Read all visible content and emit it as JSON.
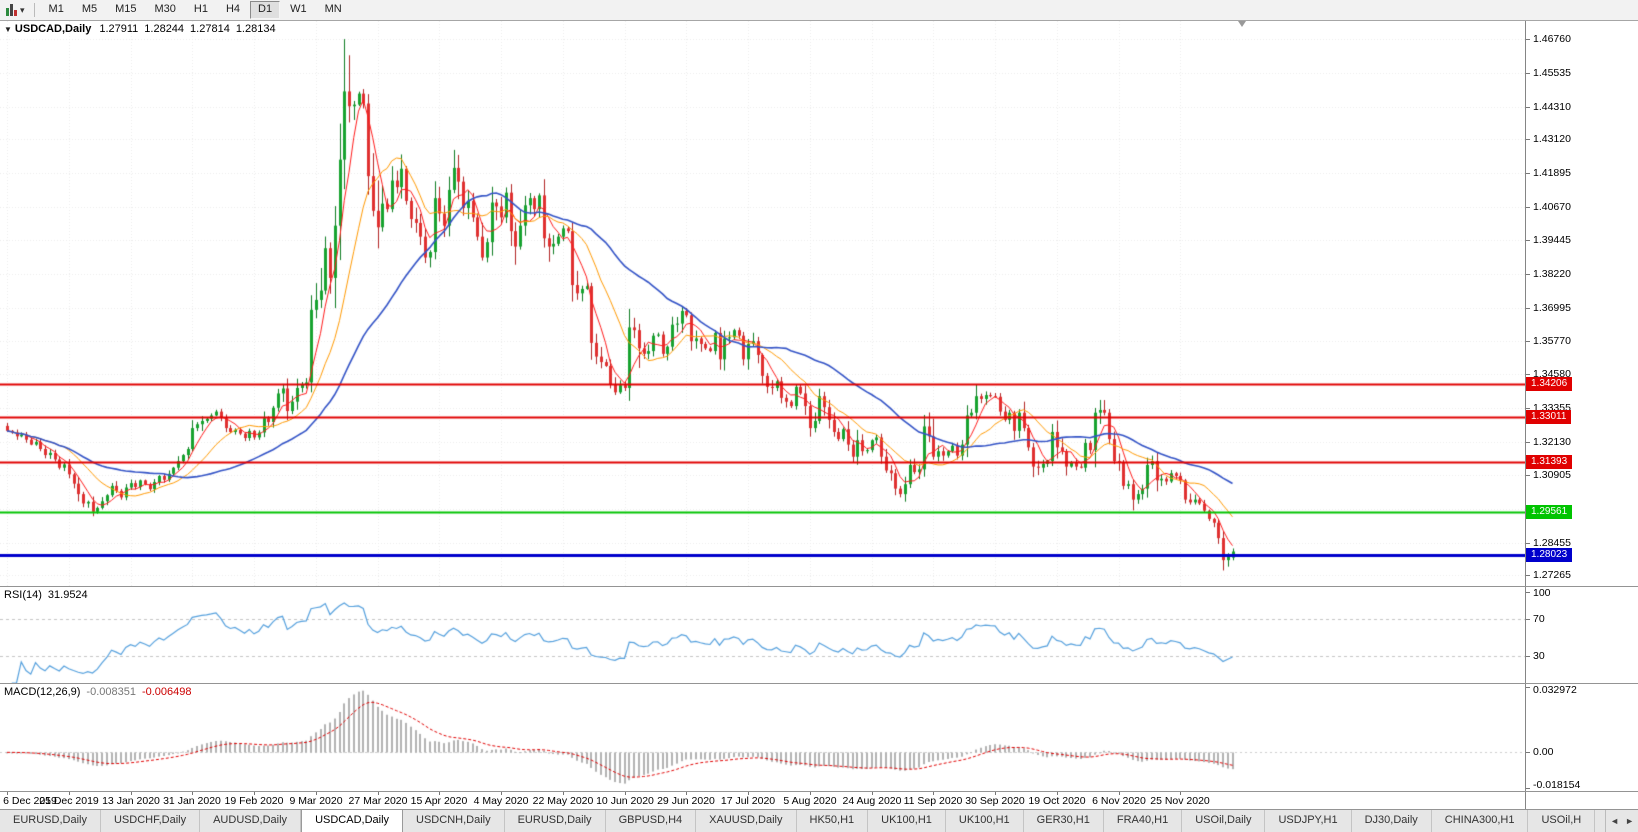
{
  "icons": {
    "caret": "▾",
    "scroll_left": "◄",
    "scroll_right": "►",
    "chart_type": "candlestick-chart"
  },
  "toolbar": {
    "timeframes": [
      "M1",
      "M5",
      "M15",
      "M30",
      "H1",
      "H4",
      "D1",
      "W1",
      "MN"
    ],
    "active_timeframe": "D1"
  },
  "title": {
    "marker": "▼",
    "symbol": "USDCAD,Daily",
    "open": "1.27911",
    "high": "1.28244",
    "low": "1.27814",
    "close": "1.28134"
  },
  "price_axis": {
    "labels": [
      "1.46760",
      "1.45535",
      "1.44310",
      "1.43120",
      "1.41895",
      "1.40670",
      "1.39445",
      "1.38220",
      "1.36995",
      "1.35770",
      "1.34580",
      "1.33355",
      "1.32130",
      "1.30905",
      "1.29680",
      "1.28455",
      "1.27265"
    ]
  },
  "levels": [
    {
      "price": "1.34206",
      "value": 1.34206,
      "color": "#e00000",
      "width": 2
    },
    {
      "price": "1.33011",
      "value": 1.33011,
      "color": "#e00000",
      "width": 2
    },
    {
      "price": "1.31393",
      "value": 1.31393,
      "color": "#e00000",
      "width": 2
    },
    {
      "price": "1.29561",
      "value": 1.29561,
      "color": "#00c400",
      "width": 2
    },
    {
      "price": "1.28023",
      "value": 1.28023,
      "color": "#0000cc",
      "width": 3
    }
  ],
  "rsi": {
    "name": "RSI(14)",
    "value": "31.9524",
    "line_color": "#55a0dd",
    "range": [
      0,
      105
    ],
    "levels": [
      {
        "label": "100",
        "value": 100,
        "line": false
      },
      {
        "label": "70",
        "value": 70,
        "line": true
      },
      {
        "label": "30",
        "value": 30,
        "line": true
      }
    ]
  },
  "macd": {
    "name": "MACD(12,26,9)",
    "main_value": "-0.008351",
    "signal_value": "-0.006498",
    "histogram_color": "#b2b2b2",
    "signal_color": "#e00000",
    "range": [
      -0.0195,
      0.0345
    ],
    "scale": [
      {
        "label": "0.032972",
        "value": 0.032972
      },
      {
        "label": "0.00",
        "value": 0
      },
      {
        "label": "-0.018154",
        "value": -0.018154
      }
    ]
  },
  "date_axis": [
    "6 Dec 2019",
    "25 Dec 2019",
    "13 Jan 2020",
    "31 Jan 2020",
    "19 Feb 2020",
    "9 Mar 2020",
    "27 Mar 2020",
    "15 Apr 2020",
    "4 May 2020",
    "22 May 2020",
    "10 Jun 2020",
    "29 Jun 2020",
    "17 Jul 2020",
    "5 Aug 2020",
    "24 Aug 2020",
    "11 Sep 2020",
    "30 Sep 2020",
    "19 Oct 2020",
    "6 Nov 2020",
    "25 Nov 2020"
  ],
  "tabs": {
    "items": [
      "EURUSD,Daily",
      "USDCHF,Daily",
      "AUDUSD,Daily",
      "USDCAD,Daily",
      "USDCNH,Daily",
      "EURUSD,Daily",
      "GBPUSD,H4",
      "XAUUSD,Daily",
      "HK50,H1",
      "UK100,H1",
      "UK100,H1",
      "GER30,H1",
      "FRA40,H1",
      "USOil,Daily",
      "USDJPY,H1",
      "DJ30,Daily",
      "CHINA300,H1",
      "USOil,H"
    ],
    "active_index": 3
  },
  "chart_data": {
    "type": "candlestick",
    "symbol": "USDCAD",
    "timeframe": "Daily",
    "title": "USDCAD,Daily",
    "price_range": [
      1.2688,
      1.4742
    ],
    "grid": true,
    "colors": {
      "bull": "#17a32f",
      "bear": "#e03030",
      "bull_wick": "#0e7d22",
      "bear_wick": "#b22424",
      "grid": "#ececec"
    },
    "moving_averages": [
      {
        "type": "sma",
        "period": 5,
        "color": "#ff1a1a",
        "width": 1
      },
      {
        "type": "sma",
        "period": 13,
        "color": "#ff9900",
        "width": 1
      },
      {
        "type": "sma",
        "period": 34,
        "color": "#3353c6",
        "width": 1.6
      }
    ],
    "tick_indices": [
      0,
      13,
      26,
      39,
      52,
      65,
      78,
      91,
      104,
      117,
      130,
      143,
      156,
      169,
      182,
      195,
      208,
      221,
      234,
      247
    ],
    "spike": {
      "index": 71,
      "high": 1.4676
    },
    "last_candle": {
      "open": 1.27911,
      "high": 1.28244,
      "low": 1.27814,
      "close": 1.28134
    },
    "closes": [
      1.3252,
      1.3246,
      1.3232,
      1.3238,
      1.322,
      1.3202,
      1.3212,
      1.3186,
      1.3164,
      1.3172,
      1.3148,
      1.3118,
      1.313,
      1.3094,
      1.306,
      1.3022,
      1.2988,
      1.2994,
      1.2958,
      1.2972,
      1.2996,
      1.3018,
      1.3052,
      1.3034,
      1.301,
      1.3046,
      1.3062,
      1.3048,
      1.3072,
      1.3058,
      1.304,
      1.3066,
      1.3088,
      1.3074,
      1.3096,
      1.3118,
      1.3142,
      1.3164,
      1.3186,
      1.3262,
      1.3276,
      1.3288,
      1.3296,
      1.3308,
      1.3322,
      1.3298,
      1.3262,
      1.3248,
      1.3256,
      1.3242,
      1.3226,
      1.3252,
      1.3228,
      1.3246,
      1.3298,
      1.3284,
      1.3336,
      1.3388,
      1.3406,
      1.3324,
      1.3358,
      1.3408,
      1.3422,
      1.3428,
      1.3692,
      1.3728,
      1.3762,
      1.3916,
      1.3808,
      1.3998,
      1.4238,
      1.4486,
      1.4432,
      1.4438,
      1.4478,
      1.4442,
      1.4178,
      1.4052,
      1.3992,
      1.4078,
      1.4058,
      1.4162,
      1.4138,
      1.4205,
      1.4088,
      1.4022,
      1.4008,
      1.3958,
      1.3882,
      1.3902,
      1.4098,
      1.4042,
      1.3998,
      1.4128,
      1.4208,
      1.4158,
      1.4062,
      1.4088,
      1.4028,
      1.3958,
      1.3882,
      1.3938,
      1.4082,
      1.4068,
      1.4028,
      1.4118,
      1.3978,
      1.3922,
      1.3998,
      1.4072,
      1.4098,
      1.4058,
      1.4108,
      1.3952,
      1.3922,
      1.3932,
      1.3958,
      1.3988,
      1.3978,
      1.3782,
      1.3752,
      1.3768,
      1.3778,
      1.3572,
      1.3522,
      1.3502,
      1.3488,
      1.3422,
      1.3392,
      1.3418,
      1.3408,
      1.3628,
      1.3618,
      1.3552,
      1.3532,
      1.3542,
      1.3598,
      1.3602,
      1.3532,
      1.3558,
      1.3638,
      1.3642,
      1.3688,
      1.3672,
      1.3578,
      1.3588,
      1.3568,
      1.3552,
      1.3542,
      1.3608,
      1.3512,
      1.3588,
      1.3592,
      1.3618,
      1.3598,
      1.3512,
      1.3568,
      1.3578,
      1.3528,
      1.3452,
      1.3412,
      1.3408,
      1.3432,
      1.3372,
      1.3358,
      1.3342,
      1.3412,
      1.3388,
      1.3342,
      1.3262,
      1.3288,
      1.3378,
      1.3338,
      1.3292,
      1.3248,
      1.3222,
      1.3258,
      1.3202,
      1.3158,
      1.3218,
      1.3178,
      1.3182,
      1.3218,
      1.3228,
      1.3158,
      1.3108,
      1.3098,
      1.3042,
      1.3022,
      1.3058,
      1.3128,
      1.3102,
      1.3112,
      1.3268,
      1.3232,
      1.3158,
      1.3178,
      1.3162,
      1.3178,
      1.3198,
      1.3162,
      1.3202,
      1.3308,
      1.3318,
      1.3378,
      1.3368,
      1.3382,
      1.3378,
      1.3376,
      1.3322,
      1.3292,
      1.3318,
      1.3252,
      1.3318,
      1.3262,
      1.3192,
      1.3122,
      1.3118,
      1.3132,
      1.3142,
      1.3248,
      1.3192,
      1.3178,
      1.3122,
      1.3138,
      1.3122,
      1.3118,
      1.3208,
      1.3182,
      1.3318,
      1.3328,
      1.3318,
      1.3222,
      1.3142,
      1.3138,
      1.3052,
      1.3058,
      1.3002,
      1.3022,
      1.3042,
      1.3128,
      1.3142,
      1.3072,
      1.3078,
      1.3068,
      1.3098,
      1.3088,
      1.3072,
      1.3002,
      1.2992,
      1.3002,
      1.2988,
      1.2962,
      1.2932,
      1.2918,
      1.2862,
      1.2782,
      1.2798,
      1.28134
    ],
    "indicators": [
      {
        "name": "RSI",
        "period": 14,
        "last_value": 31.9524
      },
      {
        "name": "MACD",
        "fast": 12,
        "slow": 26,
        "signal": 9,
        "last_main": -0.008351,
        "last_signal": -0.006498
      }
    ]
  }
}
